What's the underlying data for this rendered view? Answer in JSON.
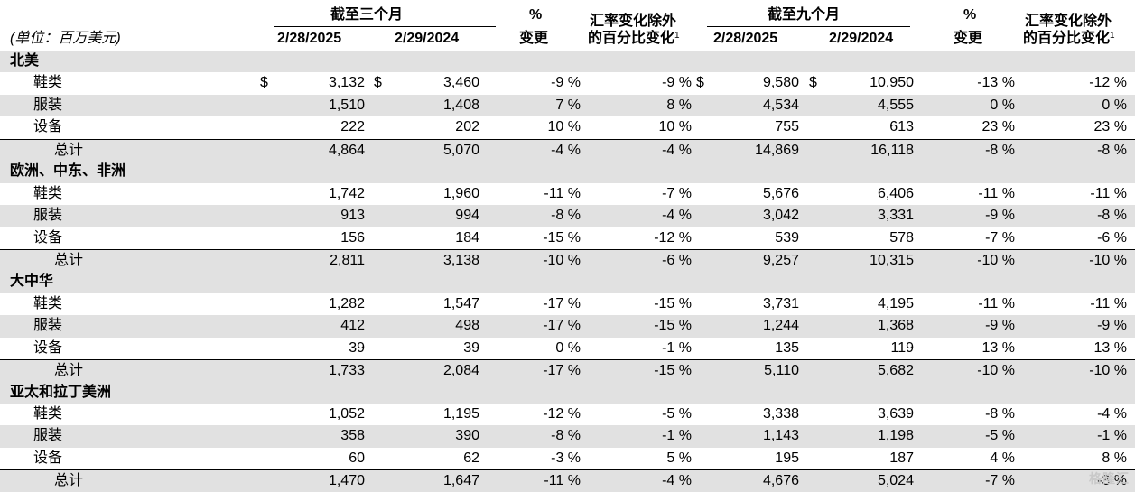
{
  "header": {
    "group1_title": "截至三个月",
    "group2_title": "截至九个月",
    "unit_label": "(单位：百万美元)",
    "col_date_a": "2/28/2025",
    "col_date_b": "2/29/2024",
    "pct_symbol": "%",
    "pct_change": "变更",
    "fx_line1": "汇率变化除外",
    "fx_line2": "的百分比变化",
    "fx_sup": "1"
  },
  "regions": [
    {
      "name": "北美",
      "rows": [
        {
          "label": "鞋类",
          "q_a": "3,132",
          "q_b": "3,460",
          "q_pct": "-9 %",
          "q_fx": "-9 %",
          "n_a": "9,580",
          "n_b": "10,950",
          "n_pct": "-13 %",
          "n_fx": "-12 %",
          "dollar": "$"
        },
        {
          "label": "服装",
          "q_a": "1,510",
          "q_b": "1,408",
          "q_pct": "7 %",
          "q_fx": "8 %",
          "n_a": "4,534",
          "n_b": "4,555",
          "n_pct": "0 %",
          "n_fx": "0 %"
        },
        {
          "label": "设备",
          "q_a": "222",
          "q_b": "202",
          "q_pct": "10 %",
          "q_fx": "10 %",
          "n_a": "755",
          "n_b": "613",
          "n_pct": "23 %",
          "n_fx": "23 %"
        }
      ],
      "total": {
        "label": "总计",
        "q_a": "4,864",
        "q_b": "5,070",
        "q_pct": "-4 %",
        "q_fx": "-4 %",
        "n_a": "14,869",
        "n_b": "16,118",
        "n_pct": "-8 %",
        "n_fx": "-8 %"
      }
    },
    {
      "name": "欧洲、中东、非洲",
      "rows": [
        {
          "label": "鞋类",
          "q_a": "1,742",
          "q_b": "1,960",
          "q_pct": "-11 %",
          "q_fx": "-7 %",
          "n_a": "5,676",
          "n_b": "6,406",
          "n_pct": "-11 %",
          "n_fx": "-11 %"
        },
        {
          "label": "服装",
          "q_a": "913",
          "q_b": "994",
          "q_pct": "-8 %",
          "q_fx": "-4 %",
          "n_a": "3,042",
          "n_b": "3,331",
          "n_pct": "-9 %",
          "n_fx": "-8 %"
        },
        {
          "label": "设备",
          "q_a": "156",
          "q_b": "184",
          "q_pct": "-15 %",
          "q_fx": "-12 %",
          "n_a": "539",
          "n_b": "578",
          "n_pct": "-7 %",
          "n_fx": "-6 %"
        }
      ],
      "total": {
        "label": "总计",
        "q_a": "2,811",
        "q_b": "3,138",
        "q_pct": "-10 %",
        "q_fx": "-6 %",
        "n_a": "9,257",
        "n_b": "10,315",
        "n_pct": "-10 %",
        "n_fx": "-10 %"
      }
    },
    {
      "name": "大中华",
      "rows": [
        {
          "label": "鞋类",
          "q_a": "1,282",
          "q_b": "1,547",
          "q_pct": "-17 %",
          "q_fx": "-15 %",
          "n_a": "3,731",
          "n_b": "4,195",
          "n_pct": "-11 %",
          "n_fx": "-11 %"
        },
        {
          "label": "服装",
          "q_a": "412",
          "q_b": "498",
          "q_pct": "-17 %",
          "q_fx": "-15 %",
          "n_a": "1,244",
          "n_b": "1,368",
          "n_pct": "-9 %",
          "n_fx": "-9 %"
        },
        {
          "label": "设备",
          "q_a": "39",
          "q_b": "39",
          "q_pct": "0 %",
          "q_fx": "-1 %",
          "n_a": "135",
          "n_b": "119",
          "n_pct": "13 %",
          "n_fx": "13 %"
        }
      ],
      "total": {
        "label": "总计",
        "q_a": "1,733",
        "q_b": "2,084",
        "q_pct": "-17 %",
        "q_fx": "-15 %",
        "n_a": "5,110",
        "n_b": "5,682",
        "n_pct": "-10 %",
        "n_fx": "-10 %"
      }
    },
    {
      "name": "亚太和拉丁美洲",
      "rows": [
        {
          "label": "鞋类",
          "q_a": "1,052",
          "q_b": "1,195",
          "q_pct": "-12 %",
          "q_fx": "-5 %",
          "n_a": "3,338",
          "n_b": "3,639",
          "n_pct": "-8 %",
          "n_fx": "-4 %"
        },
        {
          "label": "服装",
          "q_a": "358",
          "q_b": "390",
          "q_pct": "-8 %",
          "q_fx": "-1 %",
          "n_a": "1,143",
          "n_b": "1,198",
          "n_pct": "-5 %",
          "n_fx": "-1 %"
        },
        {
          "label": "设备",
          "q_a": "60",
          "q_b": "62",
          "q_pct": "-3 %",
          "q_fx": "5 %",
          "n_a": "195",
          "n_b": "187",
          "n_pct": "4 %",
          "n_fx": "8 %"
        }
      ],
      "total": {
        "label": "总计",
        "q_a": "1,470",
        "q_b": "1,647",
        "q_pct": "-11 %",
        "q_fx": "-4 %",
        "n_a": "4,676",
        "n_b": "5,024",
        "n_pct": "-7 %",
        "n_fx": "-3 %"
      }
    }
  ],
  "watermark": "格隆汇"
}
